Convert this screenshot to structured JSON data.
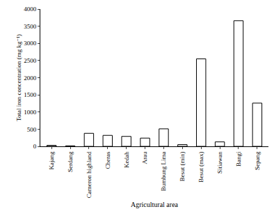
{
  "chart_data": {
    "type": "bar",
    "categories": [
      "Kajang",
      "Serdang",
      "Cameron highland",
      "Cheras",
      "Kedah",
      "Arau",
      "Bumbung Lima",
      "Besut (min)",
      "Besut (max)",
      "Sitiawan",
      "Bangi",
      "Sepang"
    ],
    "values": [
      30,
      15,
      380,
      320,
      290,
      240,
      510,
      50,
      2550,
      130,
      3660,
      1260
    ],
    "color": "#ffffff",
    "x_label": "Agricultural area",
    "y_label": "Total iron concentration (mg kg⁻¹)",
    "ylim": [
      0,
      4000
    ],
    "yticks": [
      0,
      500,
      1000,
      1500,
      2000,
      2500,
      3000,
      3500,
      4000
    ],
    "grid": false
  }
}
